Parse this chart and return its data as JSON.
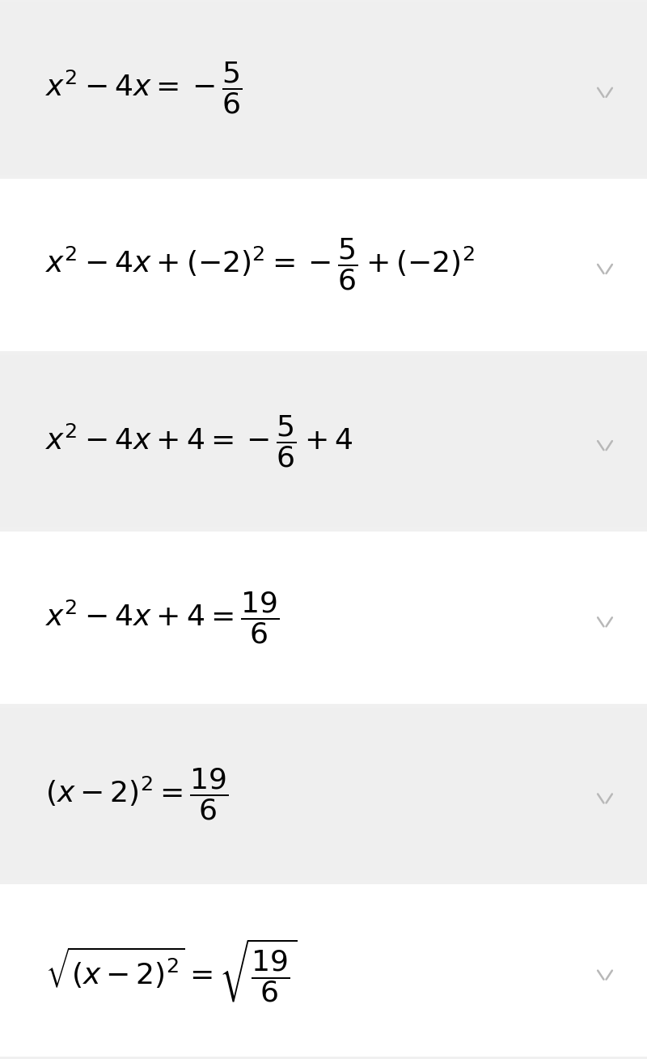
{
  "background_color": "#f0f0f0",
  "equations": [
    "x^2 - 4x = -\\dfrac{5}{6}",
    "x^2 - 4x + (-2)^2 = -\\dfrac{5}{6} + (-2)^2",
    "x^2 - 4x + 4 = -\\dfrac{5}{6} + 4",
    "x^2 - 4x + 4 = \\dfrac{19}{6}",
    "(x-2)^2 = \\dfrac{19}{6}",
    "\\sqrt{(x-2)^2} = \\sqrt{\\dfrac{19}{6}}"
  ],
  "bg_colors": [
    "#efefef",
    "#ffffff",
    "#efefef",
    "#ffffff",
    "#efefef",
    "#ffffff"
  ],
  "chevron_color": "#b8b8b8",
  "text_color": "#000000",
  "font_size": 26,
  "fig_width": 8.0,
  "fig_height": 13.09
}
